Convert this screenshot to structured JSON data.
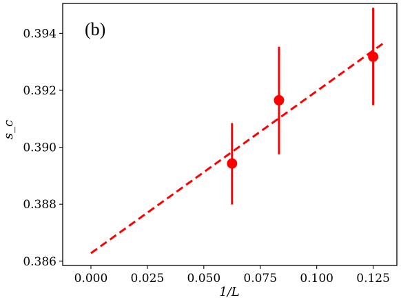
{
  "chart_data": {
    "type": "scatter",
    "panel_label": "(b)",
    "xlabel": "1/L",
    "ylabel": "s_c",
    "xlim": [
      -0.0125,
      0.1355
    ],
    "ylim": [
      0.38585,
      0.39505
    ],
    "x_ticks": [
      0.0,
      0.025,
      0.05,
      0.075,
      0.1,
      0.125
    ],
    "x_tick_labels": [
      "0.000",
      "0.025",
      "0.050",
      "0.075",
      "0.100",
      "0.125"
    ],
    "y_ticks": [
      0.386,
      0.388,
      0.39,
      0.392,
      0.394
    ],
    "y_tick_labels": [
      "0.386",
      "0.388",
      "0.390",
      "0.392",
      "0.394"
    ],
    "grid": false,
    "color": "#ff0000",
    "points": [
      {
        "x": 0.0625,
        "y": 0.38943,
        "yerr_low": 0.38799,
        "yerr_high": 0.39085
      },
      {
        "x": 0.0833,
        "y": 0.39165,
        "yerr_low": 0.38975,
        "yerr_high": 0.39353
      },
      {
        "x": 0.125,
        "y": 0.39318,
        "yerr_low": 0.39148,
        "yerr_high": 0.3949
      }
    ],
    "fit_line": {
      "x": [
        0.0,
        0.13
      ],
      "y": [
        0.38628,
        0.39368
      ],
      "style": "dashed"
    }
  }
}
